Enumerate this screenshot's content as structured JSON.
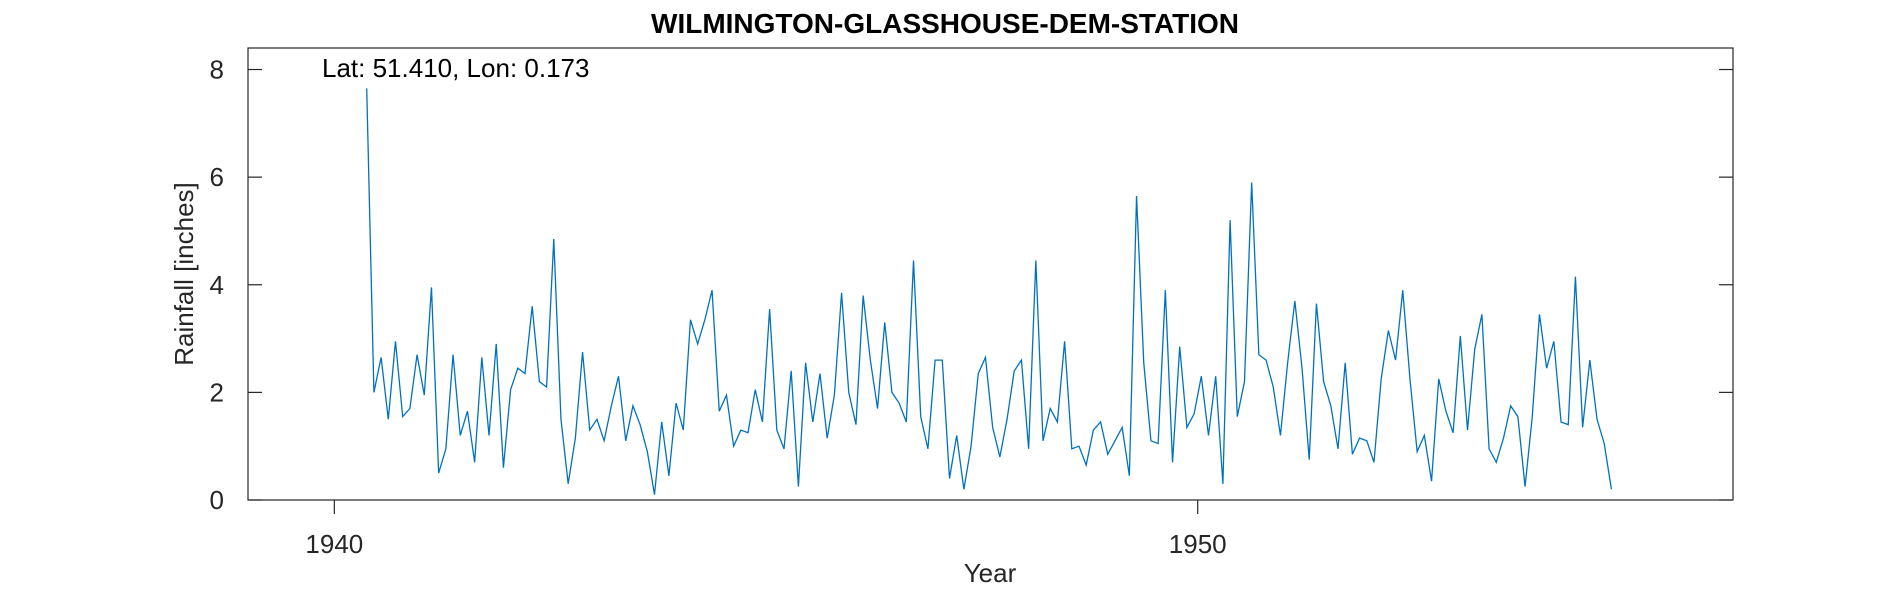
{
  "chart_data": {
    "type": "line",
    "title": "WILMINGTON-GLASSHOUSE-DEM-STATION",
    "xlabel": "Year",
    "ylabel": "Rainfall [inches]",
    "annotation": "Lat: 51.410, Lon: 0.173",
    "xlim": [
      1939,
      1956.2
    ],
    "ylim": [
      0,
      8.4
    ],
    "x_ticks": [
      1940,
      1950
    ],
    "y_ticks": [
      0,
      2,
      4,
      6,
      8
    ],
    "grid": false,
    "line_color": "#0072BD",
    "x_start": "1940-05",
    "x_step_months": 1,
    "series": [
      {
        "values": [
          7.65,
          2.0,
          2.65,
          1.5,
          2.95,
          1.55,
          1.7,
          2.7,
          1.95,
          3.95,
          0.5,
          0.95,
          2.7,
          1.2,
          1.65,
          0.7,
          2.65,
          1.2,
          2.9,
          0.6,
          2.05,
          2.45,
          2.35,
          3.6,
          2.2,
          2.1,
          4.85,
          1.5,
          0.3,
          1.15,
          2.75,
          1.3,
          1.5,
          1.1,
          1.75,
          2.3,
          1.1,
          1.75,
          1.4,
          0.9,
          0.1,
          1.45,
          0.45,
          1.8,
          1.3,
          3.35,
          2.9,
          3.35,
          3.9,
          1.65,
          1.95,
          1.0,
          1.3,
          1.25,
          2.05,
          1.45,
          3.55,
          1.3,
          0.95,
          2.4,
          0.25,
          2.55,
          1.45,
          2.35,
          1.15,
          1.95,
          3.85,
          2.0,
          1.4,
          3.8,
          2.6,
          1.7,
          3.3,
          2.0,
          1.8,
          1.45,
          4.45,
          1.55,
          0.95,
          2.6,
          2.6,
          0.4,
          1.2,
          0.2,
          1.0,
          2.35,
          2.65,
          1.35,
          0.8,
          1.5,
          2.4,
          2.6,
          0.95,
          4.45,
          1.1,
          1.7,
          1.45,
          2.95,
          0.95,
          1.0,
          0.65,
          1.3,
          1.45,
          0.85,
          1.1,
          1.35,
          0.45,
          5.65,
          2.55,
          1.1,
          1.05,
          3.9,
          0.7,
          2.85,
          1.35,
          1.6,
          2.3,
          1.2,
          2.3,
          0.3,
          5.2,
          1.55,
          2.2,
          5.9,
          2.7,
          2.6,
          2.1,
          1.2,
          2.55,
          3.7,
          2.45,
          0.75,
          3.65,
          2.2,
          1.75,
          0.95,
          2.55,
          0.85,
          1.15,
          1.1,
          0.7,
          2.25,
          3.15,
          2.6,
          3.9,
          2.25,
          0.9,
          1.2,
          0.35,
          2.25,
          1.65,
          1.25,
          3.05,
          1.3,
          2.8,
          3.45,
          0.95,
          0.7,
          1.15,
          1.75,
          1.55,
          0.25,
          1.55,
          3.45,
          2.45,
          2.95,
          1.45,
          1.4,
          4.15,
          1.35,
          2.6,
          1.5,
          1.05,
          0.2
        ]
      }
    ]
  }
}
